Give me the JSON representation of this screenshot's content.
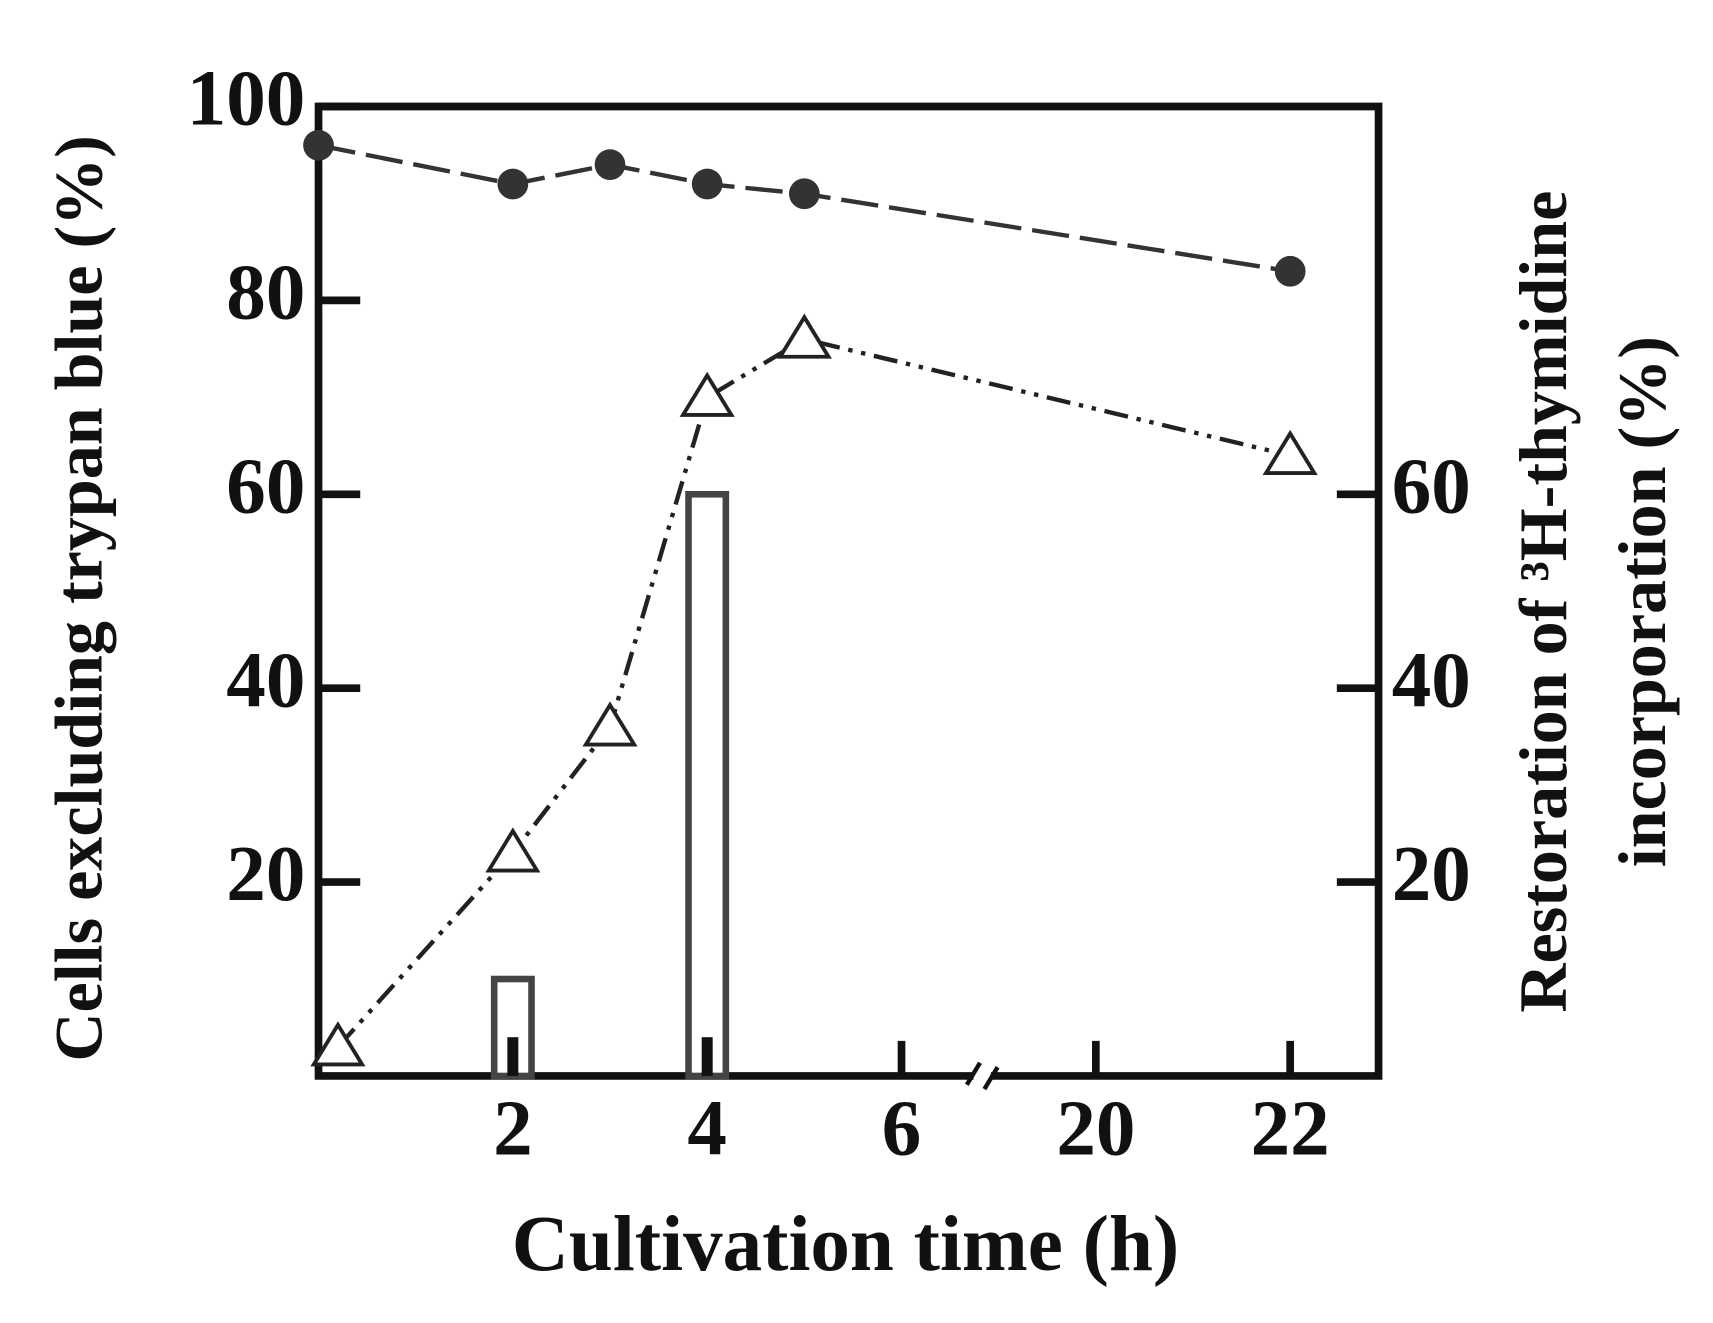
{
  "chart_data": {
    "type": "combo",
    "xlabel": "Cultivation time (h)",
    "ylabel": "Cells excluding trypan blue (%)",
    "y2label": [
      "Restoration of ³H-thymidine",
      "incorporation (%)"
    ],
    "xlim": [
      0,
      23
    ],
    "xticks": [
      2,
      4,
      6,
      20,
      22
    ],
    "axis_break": [
      7,
      19
    ],
    "ylim": [
      0,
      100
    ],
    "yticks": [
      20,
      40,
      60,
      80,
      100
    ],
    "y2lim": [
      0,
      100
    ],
    "y2ticks": [
      20,
      40,
      60
    ],
    "series": [
      {
        "type": "bar",
        "axis": "y2",
        "color": "#444444",
        "fill": "#ffffff",
        "x": [
          2,
          4
        ],
        "values": [
          10,
          60
        ]
      },
      {
        "type": "bar",
        "axis": "y2",
        "color": "#111111",
        "fill": "#111111",
        "x": [
          2,
          4
        ],
        "values": [
          4,
          4
        ]
      },
      {
        "type": "line",
        "axis": "y",
        "marker": "circle",
        "line_style": "dashed",
        "color": "#333333",
        "x": [
          0,
          2,
          3,
          4,
          5,
          22
        ],
        "values": [
          96,
          92,
          94,
          92,
          91,
          83
        ]
      },
      {
        "type": "line",
        "axis": "y2",
        "marker": "triangle",
        "line_style": "dash-dot",
        "color": "#222222",
        "x": [
          0.2,
          2,
          3,
          4,
          5,
          22
        ],
        "values": [
          3,
          23,
          36,
          70,
          76,
          64
        ]
      }
    ]
  }
}
